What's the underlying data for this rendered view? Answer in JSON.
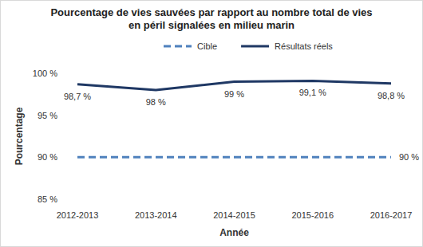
{
  "chart_data": {
    "type": "line",
    "title": "Pourcentage de vies sauvées par rapport au nombre total de vies en péril signalées en milieu marin",
    "x_label": "Année",
    "y_label": "Pourcentage",
    "categories": [
      "2012-2013",
      "2013-2014",
      "2014-2015",
      "2015-2016",
      "2016-2017"
    ],
    "series": [
      {
        "name": "Cible",
        "color": "#4f81bd",
        "line_style": "dashed",
        "values": [
          90,
          90,
          90,
          90,
          90
        ],
        "value_labels": [
          null,
          null,
          null,
          null,
          "90 %"
        ]
      },
      {
        "name": "Résultats réels",
        "color": "#1f3864",
        "line_style": "solid",
        "values": [
          98.7,
          98,
          99,
          99.1,
          98.8
        ],
        "value_labels": [
          "98,7 %",
          "98 %",
          "99 %",
          "99,1 %",
          "98,8 %"
        ]
      }
    ],
    "ylim": [
      85,
      100
    ],
    "yticks": [
      {
        "value": 85,
        "label": "85 %"
      },
      {
        "value": 90,
        "label": "90 %"
      },
      {
        "value": 95,
        "label": "95 %"
      },
      {
        "value": 100,
        "label": "100 %"
      }
    ],
    "grid": false,
    "legend": "top",
    "data_labels": true
  }
}
